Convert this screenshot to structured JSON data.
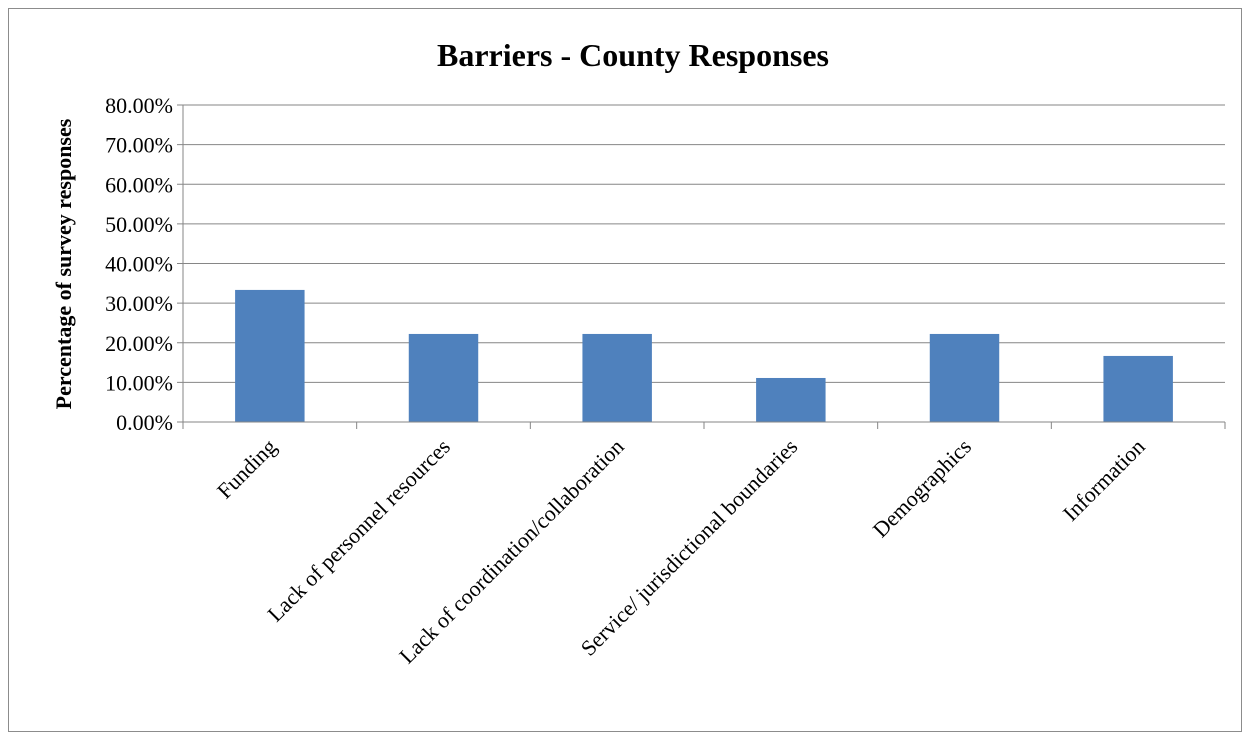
{
  "chart_data": {
    "type": "bar",
    "title": "Barriers - County Responses",
    "xlabel": "",
    "ylabel": "Percentage of survey responses",
    "categories": [
      "Funding",
      "Lack of personnel resources",
      "Lack of coordination/collaboration",
      "Service/ jurisdictional boundaries",
      "Demographics",
      "Information"
    ],
    "values": [
      33.33,
      22.22,
      22.22,
      11.11,
      22.22,
      16.67
    ],
    "ylim": [
      0,
      80
    ],
    "yticks": [
      "0.00%",
      "10.00%",
      "20.00%",
      "30.00%",
      "40.00%",
      "50.00%",
      "60.00%",
      "70.00%",
      "80.00%"
    ],
    "grid": true,
    "legend": "none",
    "bar_color": "#4F81BD"
  }
}
